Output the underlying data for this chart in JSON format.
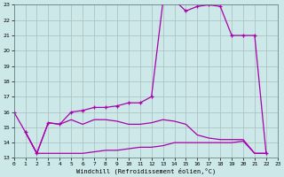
{
  "xlabel": "Windchill (Refroidissement éolien,°C)",
  "background_color": "#cce8e8",
  "grid_color": "#aabcbc",
  "line_color": "#aa00aa",
  "xlim": [
    0,
    23
  ],
  "ylim": [
    13,
    23
  ],
  "xticks": [
    0,
    1,
    2,
    3,
    4,
    5,
    6,
    7,
    8,
    9,
    10,
    11,
    12,
    13,
    14,
    15,
    16,
    17,
    18,
    19,
    20,
    21,
    22,
    23
  ],
  "yticks": [
    13,
    14,
    15,
    16,
    17,
    18,
    19,
    20,
    21,
    22,
    23
  ],
  "line1_x": [
    0,
    1,
    2,
    3,
    4,
    5,
    6,
    7,
    8,
    9,
    10,
    11,
    12,
    13,
    14,
    15,
    16,
    17,
    18,
    19,
    20,
    21,
    22
  ],
  "line1_y": [
    16.0,
    14.7,
    13.3,
    15.3,
    15.2,
    16.0,
    16.1,
    16.3,
    16.3,
    16.4,
    16.6,
    16.6,
    17.0,
    23.2,
    23.3,
    22.6,
    22.9,
    23.0,
    22.9,
    21.0,
    21.0,
    21.0,
    13.3
  ],
  "line2_x": [
    1,
    2,
    3,
    4,
    5,
    6,
    7,
    8,
    9,
    10,
    11,
    12,
    13,
    14,
    15,
    16,
    17,
    18,
    19,
    20,
    21,
    22
  ],
  "line2_y": [
    14.7,
    13.3,
    13.3,
    13.3,
    13.3,
    13.3,
    13.4,
    13.5,
    13.5,
    13.6,
    13.7,
    13.7,
    13.8,
    14.0,
    14.0,
    14.0,
    14.0,
    14.0,
    14.0,
    14.1,
    13.3,
    13.3
  ],
  "line3_x": [
    1,
    2,
    3,
    4,
    5,
    6,
    7,
    8,
    9,
    10,
    11,
    12,
    13,
    14,
    15,
    16,
    17,
    18,
    19,
    20,
    21,
    22
  ],
  "line3_y": [
    14.7,
    13.3,
    15.3,
    15.2,
    15.5,
    15.2,
    15.5,
    15.5,
    15.4,
    15.2,
    15.2,
    15.3,
    15.5,
    15.4,
    15.2,
    14.5,
    14.3,
    14.2,
    14.2,
    14.2,
    13.3,
    13.3
  ]
}
